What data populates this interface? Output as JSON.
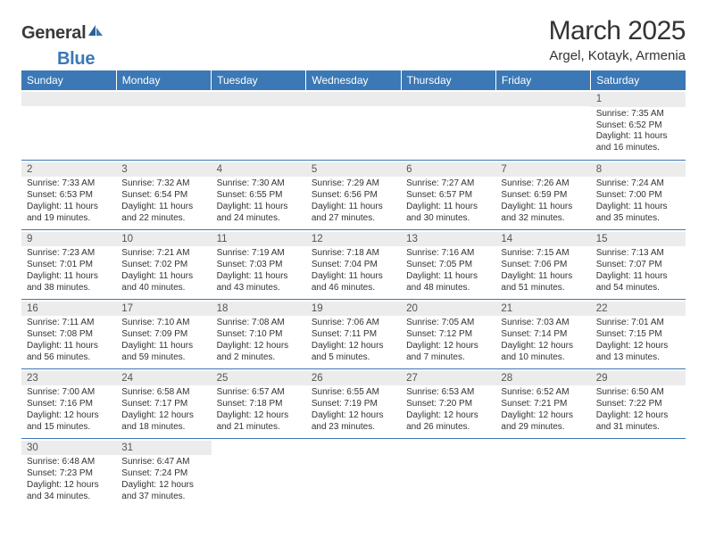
{
  "logo": {
    "text1": "General",
    "text2": "Blue"
  },
  "title": "March 2025",
  "location": "Argel, Kotayk, Armenia",
  "colors": {
    "header_bg": "#3b78b5",
    "header_text": "#ffffff",
    "day_num_bg": "#ececec",
    "border": "#3b78b5",
    "text": "#333333"
  },
  "daysOfWeek": [
    "Sunday",
    "Monday",
    "Tuesday",
    "Wednesday",
    "Thursday",
    "Friday",
    "Saturday"
  ],
  "weeks": [
    [
      null,
      null,
      null,
      null,
      null,
      null,
      {
        "n": "1",
        "sr": "7:35 AM",
        "ss": "6:52 PM",
        "dl": "11 hours and 16 minutes."
      }
    ],
    [
      {
        "n": "2",
        "sr": "7:33 AM",
        "ss": "6:53 PM",
        "dl": "11 hours and 19 minutes."
      },
      {
        "n": "3",
        "sr": "7:32 AM",
        "ss": "6:54 PM",
        "dl": "11 hours and 22 minutes."
      },
      {
        "n": "4",
        "sr": "7:30 AM",
        "ss": "6:55 PM",
        "dl": "11 hours and 24 minutes."
      },
      {
        "n": "5",
        "sr": "7:29 AM",
        "ss": "6:56 PM",
        "dl": "11 hours and 27 minutes."
      },
      {
        "n": "6",
        "sr": "7:27 AM",
        "ss": "6:57 PM",
        "dl": "11 hours and 30 minutes."
      },
      {
        "n": "7",
        "sr": "7:26 AM",
        "ss": "6:59 PM",
        "dl": "11 hours and 32 minutes."
      },
      {
        "n": "8",
        "sr": "7:24 AM",
        "ss": "7:00 PM",
        "dl": "11 hours and 35 minutes."
      }
    ],
    [
      {
        "n": "9",
        "sr": "7:23 AM",
        "ss": "7:01 PM",
        "dl": "11 hours and 38 minutes."
      },
      {
        "n": "10",
        "sr": "7:21 AM",
        "ss": "7:02 PM",
        "dl": "11 hours and 40 minutes."
      },
      {
        "n": "11",
        "sr": "7:19 AM",
        "ss": "7:03 PM",
        "dl": "11 hours and 43 minutes."
      },
      {
        "n": "12",
        "sr": "7:18 AM",
        "ss": "7:04 PM",
        "dl": "11 hours and 46 minutes."
      },
      {
        "n": "13",
        "sr": "7:16 AM",
        "ss": "7:05 PM",
        "dl": "11 hours and 48 minutes."
      },
      {
        "n": "14",
        "sr": "7:15 AM",
        "ss": "7:06 PM",
        "dl": "11 hours and 51 minutes."
      },
      {
        "n": "15",
        "sr": "7:13 AM",
        "ss": "7:07 PM",
        "dl": "11 hours and 54 minutes."
      }
    ],
    [
      {
        "n": "16",
        "sr": "7:11 AM",
        "ss": "7:08 PM",
        "dl": "11 hours and 56 minutes."
      },
      {
        "n": "17",
        "sr": "7:10 AM",
        "ss": "7:09 PM",
        "dl": "11 hours and 59 minutes."
      },
      {
        "n": "18",
        "sr": "7:08 AM",
        "ss": "7:10 PM",
        "dl": "12 hours and 2 minutes."
      },
      {
        "n": "19",
        "sr": "7:06 AM",
        "ss": "7:11 PM",
        "dl": "12 hours and 5 minutes."
      },
      {
        "n": "20",
        "sr": "7:05 AM",
        "ss": "7:12 PM",
        "dl": "12 hours and 7 minutes."
      },
      {
        "n": "21",
        "sr": "7:03 AM",
        "ss": "7:14 PM",
        "dl": "12 hours and 10 minutes."
      },
      {
        "n": "22",
        "sr": "7:01 AM",
        "ss": "7:15 PM",
        "dl": "12 hours and 13 minutes."
      }
    ],
    [
      {
        "n": "23",
        "sr": "7:00 AM",
        "ss": "7:16 PM",
        "dl": "12 hours and 15 minutes."
      },
      {
        "n": "24",
        "sr": "6:58 AM",
        "ss": "7:17 PM",
        "dl": "12 hours and 18 minutes."
      },
      {
        "n": "25",
        "sr": "6:57 AM",
        "ss": "7:18 PM",
        "dl": "12 hours and 21 minutes."
      },
      {
        "n": "26",
        "sr": "6:55 AM",
        "ss": "7:19 PM",
        "dl": "12 hours and 23 minutes."
      },
      {
        "n": "27",
        "sr": "6:53 AM",
        "ss": "7:20 PM",
        "dl": "12 hours and 26 minutes."
      },
      {
        "n": "28",
        "sr": "6:52 AM",
        "ss": "7:21 PM",
        "dl": "12 hours and 29 minutes."
      },
      {
        "n": "29",
        "sr": "6:50 AM",
        "ss": "7:22 PM",
        "dl": "12 hours and 31 minutes."
      }
    ],
    [
      {
        "n": "30",
        "sr": "6:48 AM",
        "ss": "7:23 PM",
        "dl": "12 hours and 34 minutes."
      },
      {
        "n": "31",
        "sr": "6:47 AM",
        "ss": "7:24 PM",
        "dl": "12 hours and 37 minutes."
      },
      null,
      null,
      null,
      null,
      null
    ]
  ],
  "labels": {
    "sunrise": "Sunrise:",
    "sunset": "Sunset:",
    "daylight": "Daylight:"
  }
}
